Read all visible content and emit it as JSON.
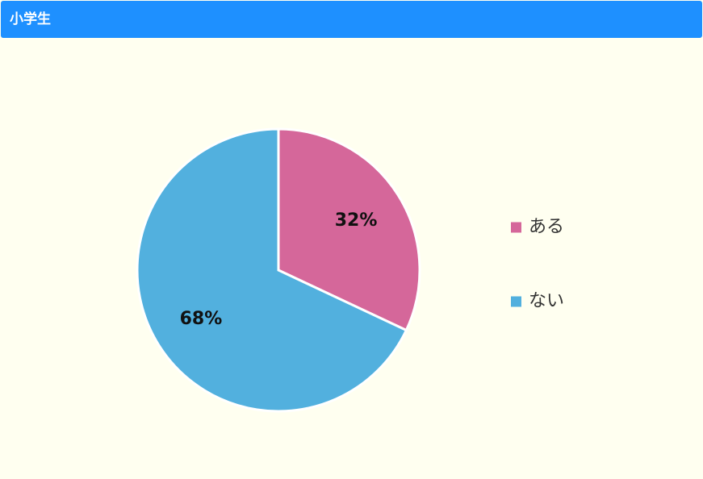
{
  "chart_data": {
    "type": "pie",
    "title": "小学生",
    "categories": [
      "ある",
      "ない"
    ],
    "values": [
      32,
      68
    ],
    "value_labels": [
      "32%",
      "68%"
    ],
    "colors": [
      "#d5679a",
      "#52b0de"
    ]
  }
}
